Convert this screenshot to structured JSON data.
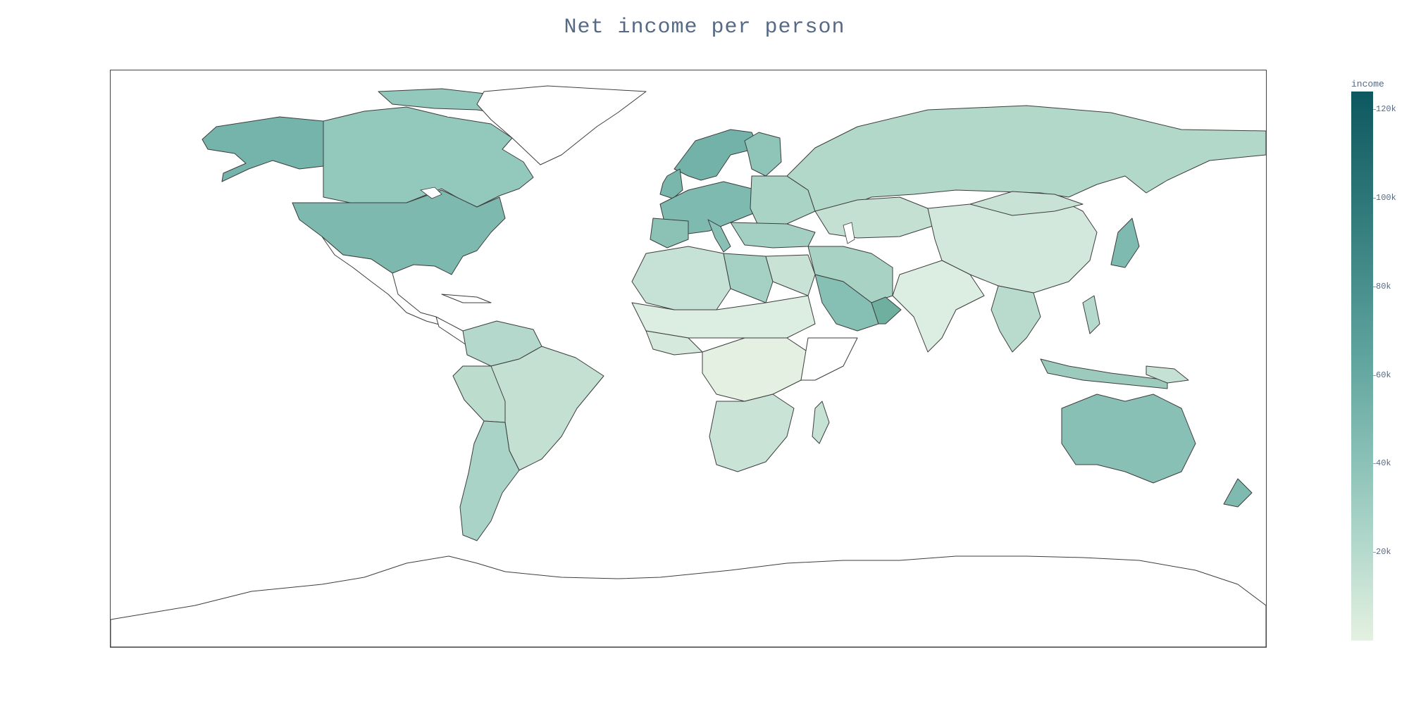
{
  "chart_data": {
    "type": "choropleth",
    "title": "Net income per person",
    "projection": "equirectangular",
    "colorbar": {
      "title": "income",
      "min": 0,
      "max": 124000,
      "ticks": [
        {
          "value": 20000,
          "label": "20k"
        },
        {
          "value": 40000,
          "label": "40k"
        },
        {
          "value": 60000,
          "label": "60k"
        },
        {
          "value": 80000,
          "label": "80k"
        },
        {
          "value": 100000,
          "label": "100k"
        },
        {
          "value": 120000,
          "label": "120k"
        }
      ],
      "colors": [
        "#e4f1e1",
        "#b4d9cc",
        "#89c0b6",
        "#63a6a0",
        "#448c8a",
        "#287274",
        "#0d585f"
      ]
    }
  },
  "colors": {
    "title": "#566a85",
    "border": "#444444",
    "ocean": "#ffffff"
  }
}
